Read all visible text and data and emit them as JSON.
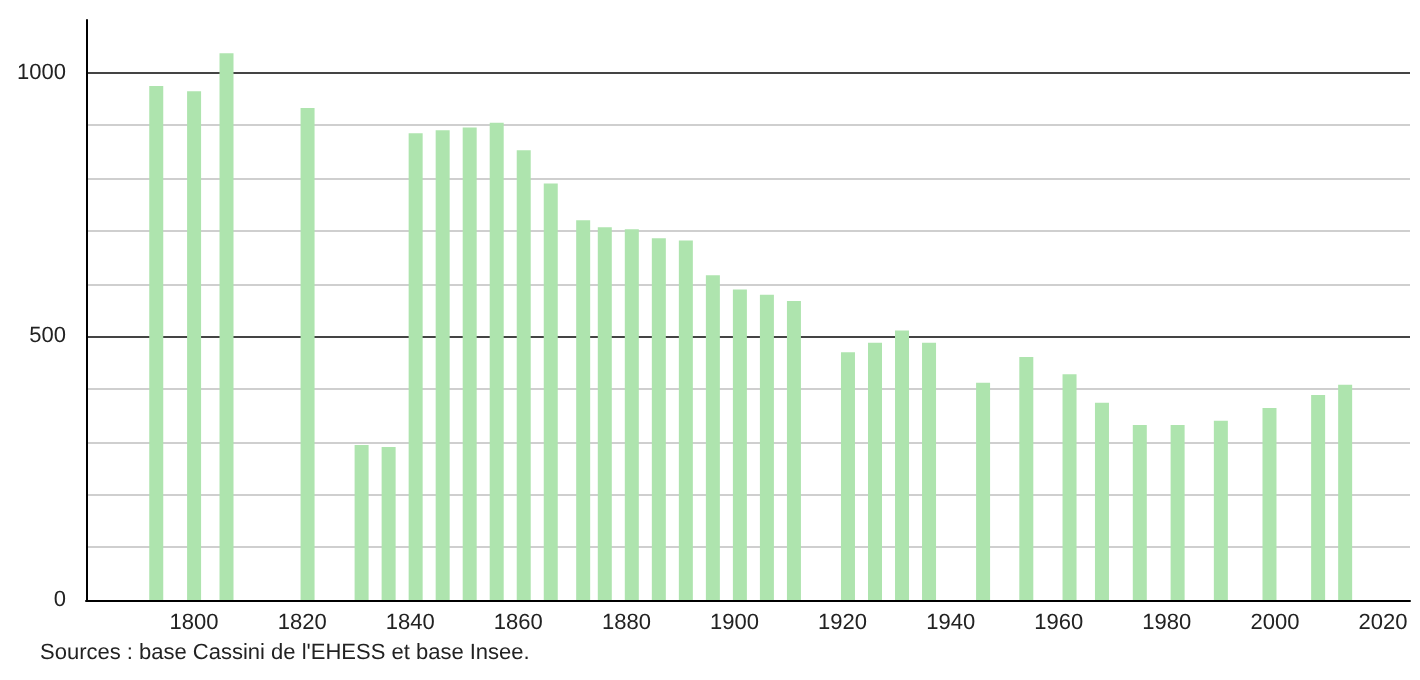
{
  "chart_data": {
    "type": "bar",
    "x": [
      1793,
      1800,
      1806,
      1821,
      1831,
      1836,
      1841,
      1846,
      1851,
      1856,
      1861,
      1866,
      1872,
      1876,
      1881,
      1886,
      1891,
      1896,
      1901,
      1906,
      1911,
      1921,
      1926,
      1931,
      1936,
      1946,
      1954,
      1962,
      1968,
      1975,
      1982,
      1990,
      1999,
      2008,
      2013
    ],
    "values": [
      975,
      965,
      1037,
      933,
      294,
      290,
      885,
      891,
      896,
      905,
      853,
      790,
      720,
      707,
      703,
      686,
      682,
      616,
      589,
      579,
      567,
      470,
      488,
      511,
      488,
      412,
      461,
      428,
      374,
      332,
      332,
      340,
      364,
      389,
      408
    ],
    "color": "#aee4ae",
    "xlim": [
      1780,
      2025
    ],
    "xticks": [
      1800,
      1820,
      1840,
      1860,
      1880,
      1900,
      1920,
      1940,
      1960,
      1980,
      2000,
      2020
    ],
    "ylim": [
      0,
      1100
    ],
    "yticks": [
      0,
      {
        "value": 100,
        "label": null
      },
      {
        "value": 200,
        "label": null
      },
      {
        "value": 300,
        "label": null
      },
      {
        "value": 400,
        "label": null
      },
      500,
      {
        "value": 600,
        "label": null
      },
      {
        "value": 700,
        "label": null
      },
      {
        "value": 800,
        "label": null
      },
      {
        "value": 900,
        "label": null
      },
      1000
    ],
    "grid": "y",
    "annotations": [
      "Sources : base Cassini de l'EHESS et base Insee."
    ]
  }
}
